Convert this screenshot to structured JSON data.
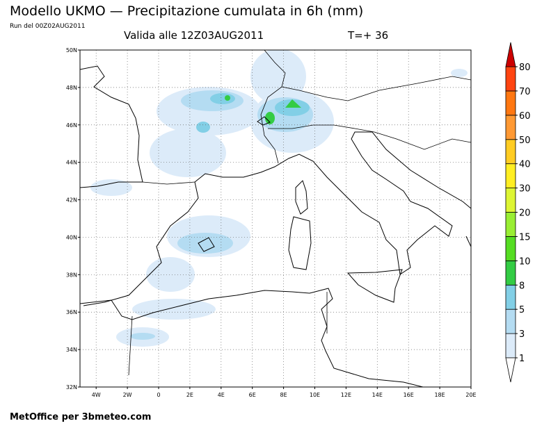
{
  "header": {
    "title": "Modello UKMO — Precipitazione cumulata in 6h (mm)",
    "run": "Run del 00Z02AUG2011",
    "valid": "Valida alle 12Z03AUG2011",
    "lead": "T=+ 36"
  },
  "map": {
    "lat_labels": [
      "50N",
      "48N",
      "46N",
      "44N",
      "42N",
      "40N",
      "38N",
      "36N",
      "34N",
      "32N"
    ],
    "lon_labels": [
      "4W",
      "2W",
      "0",
      "2E",
      "4E",
      "6E",
      "8E",
      "10E",
      "12E",
      "14E",
      "16E",
      "18E",
      "20E"
    ]
  },
  "legend": {
    "levels": [
      {
        "label": "1",
        "color": "#dcebf9"
      },
      {
        "label": "3",
        "color": "#b4dcf2"
      },
      {
        "label": "5",
        "color": "#82cfe6"
      },
      {
        "label": "8",
        "color": "#33cc44"
      },
      {
        "label": "10",
        "color": "#55dd22"
      },
      {
        "label": "15",
        "color": "#99ee33"
      },
      {
        "label": "20",
        "color": "#ddf533"
      },
      {
        "label": "30",
        "color": "#ffee22"
      },
      {
        "label": "40",
        "color": "#ffcc22"
      },
      {
        "label": "50",
        "color": "#ff9933"
      },
      {
        "label": "60",
        "color": "#ff7711"
      },
      {
        "label": "70",
        "color": "#ff4411"
      },
      {
        "label": "80",
        "color": "#ee1111"
      }
    ],
    "top_color": "#cc0000"
  },
  "footer": "MetOffice per 3bmeteo.com"
}
